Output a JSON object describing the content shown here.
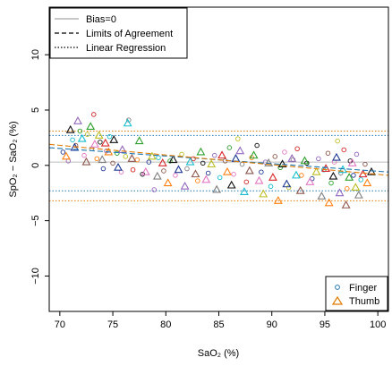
{
  "chart_data": {
    "type": "scatter",
    "title": "",
    "xlabel": "SaO₂ (%)",
    "ylabel": "SpO₂ − SaO₂ (%)",
    "xlim": [
      69,
      101
    ],
    "ylim": [
      -13.2,
      14.3
    ],
    "x_ticks": [
      70,
      75,
      80,
      85,
      90,
      95,
      100
    ],
    "y_ticks": [
      -10,
      -5,
      0,
      5,
      10
    ],
    "grid": false,
    "legend_top": {
      "position": "top-left",
      "entries": [
        {
          "label": "Bias=0",
          "line": "solid"
        },
        {
          "label": "Limits of Agreement",
          "line": "dashed"
        },
        {
          "label": "Linear Regression",
          "line": "dotted"
        }
      ]
    },
    "legend_bottom": {
      "position": "bottom-right",
      "entries": [
        {
          "label": "Finger",
          "marker": "circle",
          "color": "#1f78b4"
        },
        {
          "label": "Thumb",
          "marker": "triangle",
          "color": "#e07b00"
        }
      ]
    },
    "reference_lines": [
      {
        "name": "finger-bias",
        "y": 0.3,
        "color": "#bcbcbc",
        "style": "solid"
      },
      {
        "name": "finger-upper-loa",
        "y": 2.7,
        "color": "#1f78b4",
        "style": "dotted"
      },
      {
        "name": "finger-lower-loa",
        "y": -2.3,
        "color": "#1f78b4",
        "style": "dotted"
      },
      {
        "name": "thumb-upper-loa",
        "y": 3.1,
        "color": "#e07b00",
        "style": "dotted"
      },
      {
        "name": "thumb-lower-loa",
        "y": -3.2,
        "color": "#e07b00",
        "style": "dotted"
      }
    ],
    "regression_lines": [
      {
        "name": "finger-regression",
        "x": [
          69,
          101
        ],
        "y": [
          1.6,
          -0.6
        ],
        "color": "#1f78b4",
        "style": "dashed"
      },
      {
        "name": "thumb-regression",
        "x": [
          69,
          101
        ],
        "y": [
          1.9,
          -0.9
        ],
        "color": "#e07b00",
        "style": "dashed"
      }
    ],
    "palette": [
      "#1f3a93",
      "#2ca02c",
      "#d62728",
      "#9467bd",
      "#e377c2",
      "#ff7f0e",
      "#17becf",
      "#bcbd22",
      "#111111",
      "#8c564b",
      "#7f7f7f"
    ],
    "series": [
      {
        "name": "Finger",
        "marker": "circle",
        "points": [
          [
            70.3,
            1.2
          ],
          [
            70.8,
            0.4
          ],
          [
            71.2,
            2.3
          ],
          [
            71.5,
            1.8
          ],
          [
            71.9,
            3.1
          ],
          [
            72.3,
            0.9
          ],
          [
            72.6,
            2.8
          ],
          [
            73.0,
            1.5
          ],
          [
            73.2,
            4.6
          ],
          [
            73.5,
            0.6
          ],
          [
            73.8,
            2.1
          ],
          [
            74.1,
            -0.3
          ],
          [
            74.4,
            1.3
          ],
          [
            74.7,
            2.6
          ],
          [
            75.0,
            0.2
          ],
          [
            75.4,
            1.1
          ],
          [
            75.8,
            -0.6
          ],
          [
            76.2,
            0.8
          ],
          [
            76.5,
            4.1
          ],
          [
            76.9,
            -0.4
          ],
          [
            77.3,
            0.5
          ],
          [
            77.8,
            -0.8
          ],
          [
            78.4,
            0.3
          ],
          [
            78.9,
            -2.2
          ],
          [
            79.3,
            0.7
          ],
          [
            79.8,
            -0.5
          ],
          [
            80.4,
            0.4
          ],
          [
            80.9,
            -0.9
          ],
          [
            81.5,
            1.0
          ],
          [
            82.0,
            -0.3
          ],
          [
            82.6,
            0.6
          ],
          [
            83.0,
            -1.4
          ],
          [
            83.5,
            0.2
          ],
          [
            84.0,
            -0.7
          ],
          [
            84.6,
            0.9
          ],
          [
            85.1,
            -1.1
          ],
          [
            85.6,
            0.4
          ],
          [
            86.0,
            1.6
          ],
          [
            86.4,
            -0.8
          ],
          [
            86.8,
            2.4
          ],
          [
            87.2,
            0.1
          ],
          [
            87.6,
            -1.5
          ],
          [
            88.1,
            0.7
          ],
          [
            88.6,
            1.8
          ],
          [
            89.0,
            -0.6
          ],
          [
            89.4,
            0.3
          ],
          [
            89.9,
            -1.9
          ],
          [
            90.3,
            0.8
          ],
          [
            90.8,
            -0.2
          ],
          [
            91.2,
            1.2
          ],
          [
            91.6,
            -2.0
          ],
          [
            92.0,
            0.5
          ],
          [
            92.4,
            1.5
          ],
          [
            92.8,
            -0.9
          ],
          [
            93.3,
            0.2
          ],
          [
            93.8,
            -1.2
          ],
          [
            94.4,
            0.6
          ],
          [
            94.9,
            -0.4
          ],
          [
            95.3,
            1.1
          ],
          [
            95.6,
            -1.6
          ],
          [
            95.9,
            0.3
          ],
          [
            96.2,
            2.2
          ],
          [
            96.5,
            -0.7
          ],
          [
            96.8,
            1.4
          ],
          [
            97.1,
            -2.1
          ],
          [
            97.4,
            0.4
          ],
          [
            97.7,
            -0.9
          ],
          [
            98.0,
            1.0
          ],
          [
            98.4,
            -1.3
          ],
          [
            98.8,
            0.1
          ]
        ]
      },
      {
        "name": "Thumb",
        "marker": "triangle",
        "points": [
          [
            70.6,
            0.8
          ],
          [
            71.0,
            3.2
          ],
          [
            71.4,
            1.6
          ],
          [
            71.7,
            4.0
          ],
          [
            72.1,
            2.4
          ],
          [
            72.5,
            0.3
          ],
          [
            72.9,
            3.5
          ],
          [
            73.3,
            1.9
          ],
          [
            73.7,
            2.7
          ],
          [
            74.0,
            0.5
          ],
          [
            74.3,
            2.0
          ],
          [
            74.6,
            1.2
          ],
          [
            75.1,
            2.3
          ],
          [
            75.5,
            -0.2
          ],
          [
            75.9,
            1.4
          ],
          [
            76.4,
            3.8
          ],
          [
            76.8,
            0.6
          ],
          [
            77.5,
            2.2
          ],
          [
            78.1,
            -0.6
          ],
          [
            78.7,
            0.8
          ],
          [
            79.2,
            -1.0
          ],
          [
            79.7,
            0.2
          ],
          [
            80.2,
            -1.6
          ],
          [
            80.7,
            0.5
          ],
          [
            81.2,
            -0.4
          ],
          [
            81.8,
            -1.9
          ],
          [
            82.3,
            0.3
          ],
          [
            82.8,
            -0.8
          ],
          [
            83.3,
            1.2
          ],
          [
            83.8,
            -1.3
          ],
          [
            84.3,
            0.1
          ],
          [
            84.8,
            -2.2
          ],
          [
            85.3,
            0.9
          ],
          [
            85.8,
            -0.6
          ],
          [
            86.2,
            -1.8
          ],
          [
            86.6,
            0.6
          ],
          [
            87.0,
            1.3
          ],
          [
            87.4,
            -2.4
          ],
          [
            87.9,
            -0.5
          ],
          [
            88.3,
            0.9
          ],
          [
            88.8,
            -1.4
          ],
          [
            89.2,
            -2.6
          ],
          [
            89.7,
            0.2
          ],
          [
            90.1,
            -1.1
          ],
          [
            90.6,
            -3.2
          ],
          [
            91.0,
            0.1
          ],
          [
            91.4,
            -1.7
          ],
          [
            91.9,
            0.6
          ],
          [
            92.3,
            -0.9
          ],
          [
            92.7,
            -2.3
          ],
          [
            93.1,
            0.4
          ],
          [
            93.6,
            -1.5
          ],
          [
            94.2,
            -0.6
          ],
          [
            94.7,
            -2.8
          ],
          [
            95.1,
            -0.3
          ],
          [
            95.4,
            -3.4
          ],
          [
            95.8,
            -1.0
          ],
          [
            96.1,
            0.7
          ],
          [
            96.4,
            -2.5
          ],
          [
            96.7,
            -0.4
          ],
          [
            97.0,
            -3.6
          ],
          [
            97.3,
            -1.1
          ],
          [
            97.6,
            0.2
          ],
          [
            97.9,
            -2.0
          ],
          [
            98.2,
            -2.7
          ],
          [
            98.6,
            -0.8
          ],
          [
            99.0,
            -1.6
          ],
          [
            99.4,
            -0.6
          ]
        ]
      }
    ]
  }
}
